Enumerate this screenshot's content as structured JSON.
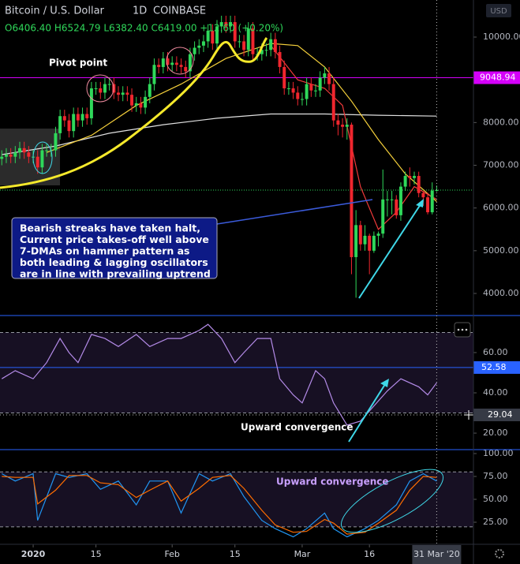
{
  "chart_data": [
    {
      "type": "candlestick",
      "title": "Bitcoin / U.S. Dollar",
      "interval": "1D",
      "exchange": "COINBASE",
      "ohlc_text": "O6406.40 H6524.79 L6382.40 C6419.00 +12.60 (+0.20%)",
      "currency": "USD",
      "pivot_label": "Pivot point",
      "note_lines": [
        "Bearish streaks have taken halt,",
        "Current price takes-off well above",
        "7-DMAs on hammer pattern as",
        "both leading & lagging oscillators",
        "are in line with prevailing uptrend"
      ],
      "up_color": "#2fd85a",
      "down_color": "#f0262e",
      "xlim": [
        -0.4,
        105.2
      ],
      "ylim": [
        3483,
        10868
      ],
      "xticks": [
        {
          "value": 7,
          "label": "2020"
        },
        {
          "value": 21,
          "label": "15"
        },
        {
          "value": 38,
          "label": "Feb"
        },
        {
          "value": 52,
          "label": "15"
        },
        {
          "value": 67,
          "label": "Mar"
        },
        {
          "value": 82,
          "label": "16"
        }
      ],
      "yticks": [
        {
          "value": 4000,
          "label": "4000.00"
        },
        {
          "value": 5000,
          "label": "5000.00"
        },
        {
          "value": 6000,
          "label": "6000.00"
        },
        {
          "value": 7000,
          "label": "7000.00"
        },
        {
          "value": 8000,
          "label": "8000.00"
        },
        {
          "value": 9000,
          "label": "9000.00"
        },
        {
          "value": 10000,
          "label": "10000.00"
        }
      ],
      "crosshair": {
        "value": 97,
        "label": "31 Mar '20"
      },
      "levels": [
        {
          "value": 9048.94,
          "color": "#d500f9"
        }
      ],
      "open": [
        7150,
        7200,
        7250,
        7200,
        7300,
        7400,
        7300,
        7200,
        7200,
        6950,
        7350,
        7350,
        7350,
        7750,
        8150,
        8050,
        7800,
        8200,
        8050,
        8200,
        8100,
        8800,
        8800,
        8700,
        8900,
        8900,
        8700,
        8650,
        8700,
        8650,
        8400,
        8450,
        8350,
        8600,
        8900,
        9350,
        9300,
        9500,
        9350,
        9400,
        9350,
        9300,
        9200,
        9600,
        9750,
        9800,
        9900,
        10150,
        9850,
        10250,
        10350,
        10250,
        10350,
        9900,
        9900,
        9700,
        10200,
        9600,
        9600,
        9700,
        9700,
        9950,
        9650,
        9300,
        8800,
        8800,
        8700,
        8550,
        8550,
        8900,
        8750,
        8750,
        9050,
        9150,
        8900,
        8050,
        7950,
        7900,
        7950,
        4850,
        5600,
        5150,
        5350,
        5000,
        5350,
        5400,
        6200,
        6200,
        6200,
        5830,
        6500,
        6750,
        6700,
        6750,
        6350,
        6250,
        5900,
        6406.4
      ],
      "high": [
        7350,
        7400,
        7400,
        7450,
        7550,
        7550,
        7450,
        7350,
        7350,
        7500,
        7500,
        7500,
        7900,
        8300,
        8300,
        8200,
        8350,
        8350,
        8350,
        8350,
        8950,
        8950,
        8950,
        9050,
        9050,
        9050,
        8850,
        8850,
        8850,
        8800,
        8600,
        8600,
        8750,
        9050,
        9500,
        9500,
        9650,
        9650,
        9550,
        9550,
        9500,
        9450,
        9750,
        9900,
        9950,
        10050,
        10300,
        10300,
        10400,
        10500,
        10500,
        10500,
        10500,
        10050,
        10050,
        10350,
        10350,
        9750,
        9850,
        9850,
        10100,
        10100,
        9800,
        9450,
        8950,
        8950,
        8850,
        8700,
        9050,
        9050,
        8900,
        9200,
        9300,
        9300,
        9050,
        8200,
        8100,
        8100,
        8000,
        5950,
        5700,
        5600,
        5400,
        5450,
        5450,
        6900,
        6400,
        6400,
        6300,
        6600,
        6850,
        6950,
        6850,
        6850,
        6400,
        6350,
        6600,
        6524.79
      ],
      "low": [
        7000,
        7050,
        7050,
        7050,
        7150,
        7150,
        7050,
        7050,
        6800,
        6800,
        7200,
        7200,
        7200,
        7600,
        7900,
        7650,
        7650,
        7900,
        7900,
        7950,
        7950,
        8650,
        8550,
        8550,
        8750,
        8550,
        8500,
        8500,
        8500,
        8250,
        8250,
        8200,
        8200,
        8450,
        8750,
        9150,
        9150,
        9200,
        9200,
        9200,
        9150,
        9050,
        9050,
        9450,
        9600,
        9650,
        9750,
        9700,
        9700,
        10100,
        10100,
        10100,
        9750,
        9750,
        9550,
        9550,
        9450,
        9450,
        9450,
        9550,
        9550,
        9500,
        9150,
        8650,
        8650,
        8550,
        8400,
        8400,
        8400,
        8600,
        8600,
        8600,
        8900,
        8750,
        7900,
        7700,
        7650,
        7600,
        4450,
        3900,
        5000,
        5000,
        4450,
        4950,
        5100,
        5300,
        5800,
        5850,
        5750,
        5700,
        6400,
        6500,
        6550,
        6250,
        6050,
        5850,
        5850,
        6382.4
      ],
      "close": [
        7200,
        7250,
        7200,
        7300,
        7400,
        7300,
        7200,
        7200,
        6950,
        7350,
        7350,
        7350,
        7750,
        8150,
        8050,
        7800,
        8200,
        8050,
        8200,
        8100,
        8800,
        8800,
        8700,
        8900,
        8900,
        8700,
        8650,
        8700,
        8650,
        8400,
        8450,
        8350,
        8600,
        8900,
        9350,
        9300,
        9500,
        9350,
        9400,
        9350,
        9300,
        9200,
        9600,
        9750,
        9800,
        9900,
        10150,
        9850,
        10250,
        10350,
        10250,
        10350,
        9900,
        9900,
        9700,
        10200,
        9600,
        9600,
        9700,
        9700,
        9950,
        9650,
        9300,
        8800,
        8800,
        8700,
        8550,
        8550,
        8900,
        8750,
        8750,
        9050,
        9150,
        8900,
        8050,
        7950,
        7900,
        7950,
        4850,
        5600,
        5150,
        5350,
        5000,
        5350,
        5400,
        6200,
        6200,
        6200,
        5830,
        6500,
        6750,
        6700,
        6750,
        6350,
        6250,
        5900,
        6406.4,
        6419
      ],
      "moving_averages": [
        {
          "color": "#e0e0e0",
          "x": [
            0,
            12,
            24,
            36,
            48,
            60,
            72,
            84,
            97
          ],
          "values": [
            7250,
            7450,
            7750,
            7950,
            8100,
            8200,
            8200,
            8170,
            8150
          ]
        },
        {
          "color": "#f5d03b",
          "x": [
            10,
            20,
            30,
            40,
            50,
            60,
            66,
            72,
            78,
            84,
            90,
            97
          ],
          "values": [
            7300,
            7700,
            8400,
            8900,
            9500,
            9850,
            9800,
            9300,
            8500,
            7600,
            6800,
            6150
          ]
        },
        {
          "color": "#f03a3a",
          "x": [
            60,
            66,
            72,
            76,
            80,
            84,
            88,
            92,
            97
          ],
          "values": [
            9800,
            9000,
            8800,
            8400,
            6500,
            5500,
            5900,
            6500,
            6200
          ]
        }
      ]
    },
    {
      "type": "line",
      "annotation": "Upward convergence",
      "xlim": [
        -0.4,
        105.2
      ],
      "ylim": [
        11.8,
        78.4
      ],
      "yticks": [
        {
          "value": 20,
          "label": "20.00"
        },
        {
          "value": 40,
          "label": "40.00"
        },
        {
          "value": 60,
          "label": "60.00"
        }
      ],
      "band": [
        30,
        70
      ],
      "markers": [
        {
          "value": 52.58,
          "color": "#2962ff"
        }
      ],
      "crosshair": 29.04,
      "x": [
        0,
        3,
        7,
        10,
        13,
        15,
        17,
        20,
        23,
        26,
        30,
        33,
        37,
        40,
        44,
        46,
        49,
        52,
        54,
        57,
        60,
        62,
        65,
        67,
        70,
        72,
        74,
        77,
        80,
        82,
        86,
        89,
        93,
        95,
        97
      ],
      "series": [
        {
          "color": "#b48be8",
          "values": [
            47,
            51,
            47,
            55,
            67,
            60,
            55,
            69,
            67,
            63,
            69,
            63,
            67,
            67,
            71,
            74,
            67,
            55,
            60,
            67,
            67,
            47,
            39,
            35,
            51,
            47,
            35,
            24,
            26,
            31,
            41,
            47,
            43,
            39,
            45
          ]
        }
      ]
    },
    {
      "type": "line",
      "annotation": "Upward convergence",
      "xlim": [
        -0.4,
        105.2
      ],
      "ylim": [
        0.9,
        104.3
      ],
      "yticks": [
        {
          "value": 25,
          "label": "25.00"
        },
        {
          "value": 50,
          "label": "50.00"
        },
        {
          "value": 75,
          "label": "75.00"
        },
        {
          "value": 100,
          "label": "100.00"
        }
      ],
      "band": [
        20,
        80
      ],
      "x": [
        0,
        3,
        7,
        8,
        12,
        15,
        19,
        22,
        26,
        30,
        33,
        37,
        40,
        44,
        47,
        51,
        54,
        58,
        61,
        65,
        68,
        72,
        74,
        77,
        81,
        84,
        88,
        91,
        94,
        97
      ],
      "series": [
        {
          "color": "#2196f3",
          "values": [
            78,
            70,
            78,
            27,
            78,
            74,
            78,
            61,
            70,
            44,
            70,
            70,
            35,
            78,
            70,
            78,
            53,
            27,
            18,
            9,
            18,
            35,
            18,
            9,
            18,
            27,
            44,
            70,
            78,
            70
          ]
        },
        {
          "color": "#ff6d00",
          "values": [
            75,
            74,
            74,
            45,
            60,
            76,
            76,
            68,
            66,
            52,
            60,
            70,
            48,
            62,
            74,
            76,
            62,
            38,
            22,
            14,
            15,
            28,
            24,
            12,
            14,
            24,
            38,
            60,
            75,
            74
          ]
        }
      ]
    }
  ]
}
